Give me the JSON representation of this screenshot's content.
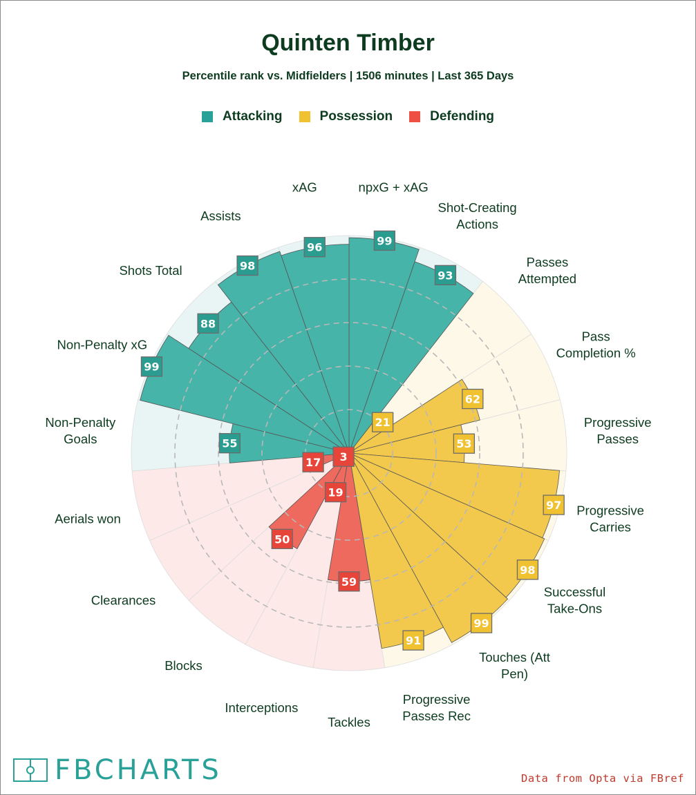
{
  "title": "Quinten Timber",
  "subtitle": "Percentile rank vs. Midfielders | 1506 minutes | Last 365 Days",
  "legend": [
    {
      "label": "Attacking",
      "color": "#2aa198"
    },
    {
      "label": "Possession",
      "color": "#f0c232"
    },
    {
      "label": "Defending",
      "color": "#ee5044"
    }
  ],
  "logo_text": "FBCHARTS",
  "credit": "Data from Opta via FBref",
  "chart_data": {
    "type": "polar-bar",
    "title": "Quinten Timber",
    "scale": [
      0,
      100
    ],
    "grid": true,
    "groups": {
      "Attacking": {
        "bar": "#47b4aa",
        "bg": "#e8f5f4",
        "label_bg": "#2a9d90"
      },
      "Possession": {
        "bar": "#f2c94c",
        "bg": "#fdf8e8",
        "label_bg": "#f0c232"
      },
      "Defending": {
        "bar": "#ef6a5e",
        "bg": "#fde9e8",
        "label_bg": "#e8453a"
      }
    },
    "categories": [
      {
        "name": "npxG + xAG",
        "label": [
          "npxG + xAG"
        ],
        "value": 99,
        "group": "Attacking"
      },
      {
        "name": "Shot-Creating Actions",
        "label": [
          "Shot-Creating",
          "Actions"
        ],
        "value": 93,
        "group": "Attacking"
      },
      {
        "name": "Passes Attempted",
        "label": [
          "Passes",
          "Attempted"
        ],
        "value": 21,
        "group": "Possession"
      },
      {
        "name": "Pass Completion %",
        "label": [
          "Pass",
          "Completion %"
        ],
        "value": 62,
        "group": "Possession"
      },
      {
        "name": "Progressive Passes",
        "label": [
          "Progressive",
          "Passes"
        ],
        "value": 53,
        "group": "Possession"
      },
      {
        "name": "Progressive Carries",
        "label": [
          "Progressive",
          "Carries"
        ],
        "value": 97,
        "group": "Possession"
      },
      {
        "name": "Successful Take-Ons",
        "label": [
          "Successful",
          "Take-Ons"
        ],
        "value": 98,
        "group": "Possession"
      },
      {
        "name": "Touches (Att Pen)",
        "label": [
          "Touches (Att",
          "Pen)"
        ],
        "value": 99,
        "group": "Possession"
      },
      {
        "name": "Progressive Passes Rec",
        "label": [
          "Progressive",
          "Passes Rec"
        ],
        "value": 91,
        "group": "Possession"
      },
      {
        "name": "Tackles",
        "label": [
          "Tackles"
        ],
        "value": 59,
        "group": "Defending"
      },
      {
        "name": "Interceptions",
        "label": [
          "Interceptions"
        ],
        "value": 19,
        "group": "Defending"
      },
      {
        "name": "Blocks",
        "label": [
          "Blocks"
        ],
        "value": 50,
        "group": "Defending"
      },
      {
        "name": "Clearances",
        "label": [
          "Clearances"
        ],
        "value": 3,
        "group": "Defending"
      },
      {
        "name": "Aerials won",
        "label": [
          "Aerials won"
        ],
        "value": 17,
        "group": "Defending"
      },
      {
        "name": "Non-Penalty Goals",
        "label": [
          "Non-Penalty",
          "Goals"
        ],
        "value": 55,
        "group": "Attacking"
      },
      {
        "name": "Non-Penalty xG",
        "label": [
          "Non-Penalty xG"
        ],
        "value": 99,
        "group": "Attacking"
      },
      {
        "name": "Shots Total",
        "label": [
          "Shots Total"
        ],
        "value": 88,
        "group": "Attacking"
      },
      {
        "name": "Assists",
        "label": [
          "Assists"
        ],
        "value": 98,
        "group": "Attacking"
      },
      {
        "name": "xAG",
        "label": [
          "xAG"
        ],
        "value": 96,
        "group": "Attacking"
      }
    ]
  }
}
